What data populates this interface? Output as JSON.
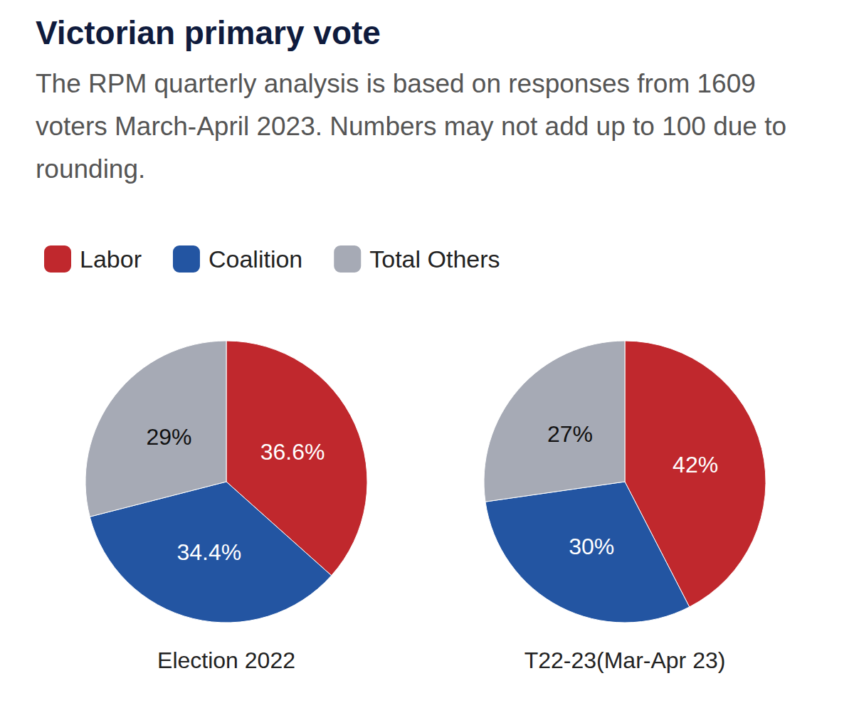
{
  "title": "Victorian primary vote",
  "subtitle": "The RPM quarterly analysis is based on responses from 1609 voters March-April 2023. Numbers may not add up to 100 due to rounding.",
  "chart_data": [
    {
      "type": "pie",
      "title": "Election 2022",
      "categories": [
        "Labor",
        "Coalition",
        "Total Others"
      ],
      "values": [
        36.6,
        34.4,
        29
      ],
      "value_labels": [
        "36.6%",
        "34.4%",
        "29%"
      ],
      "colors": [
        "#c0282d",
        "#2355a2",
        "#a6aab5"
      ],
      "data_labels": true,
      "legend": "top-left"
    },
    {
      "type": "pie",
      "title": "T22-23(Mar-Apr 23)",
      "categories": [
        "Labor",
        "Coalition",
        "Total Others"
      ],
      "values": [
        42,
        30,
        27
      ],
      "value_labels": [
        "42%",
        "30%",
        "27%"
      ],
      "colors": [
        "#c0282d",
        "#2355a2",
        "#a6aab5"
      ],
      "data_labels": true
    }
  ]
}
